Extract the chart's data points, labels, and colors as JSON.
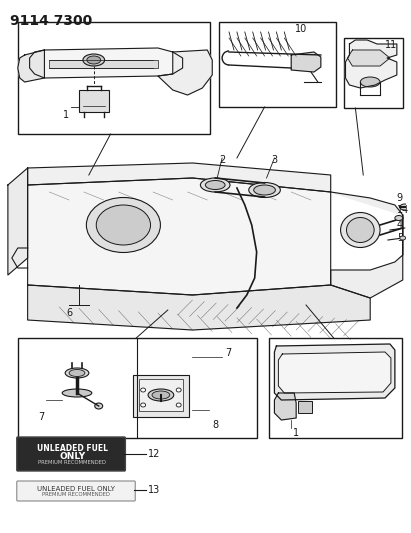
{
  "title": "9114 7300",
  "title_fontsize": 10,
  "bg_color": "#ffffff",
  "lc": "#1a1a1a",
  "label12_line1": "UNLEADED FUEL",
  "label12_line2": "ONLY",
  "label12_line3": "PREMIUM RECOMMENDED",
  "label13_line1": "UNLEADED FUEL ONLY",
  "label13_line2": "PREMIUM RECOMMENDED",
  "figure_width": 4.11,
  "figure_height": 5.33,
  "dpi": 100
}
